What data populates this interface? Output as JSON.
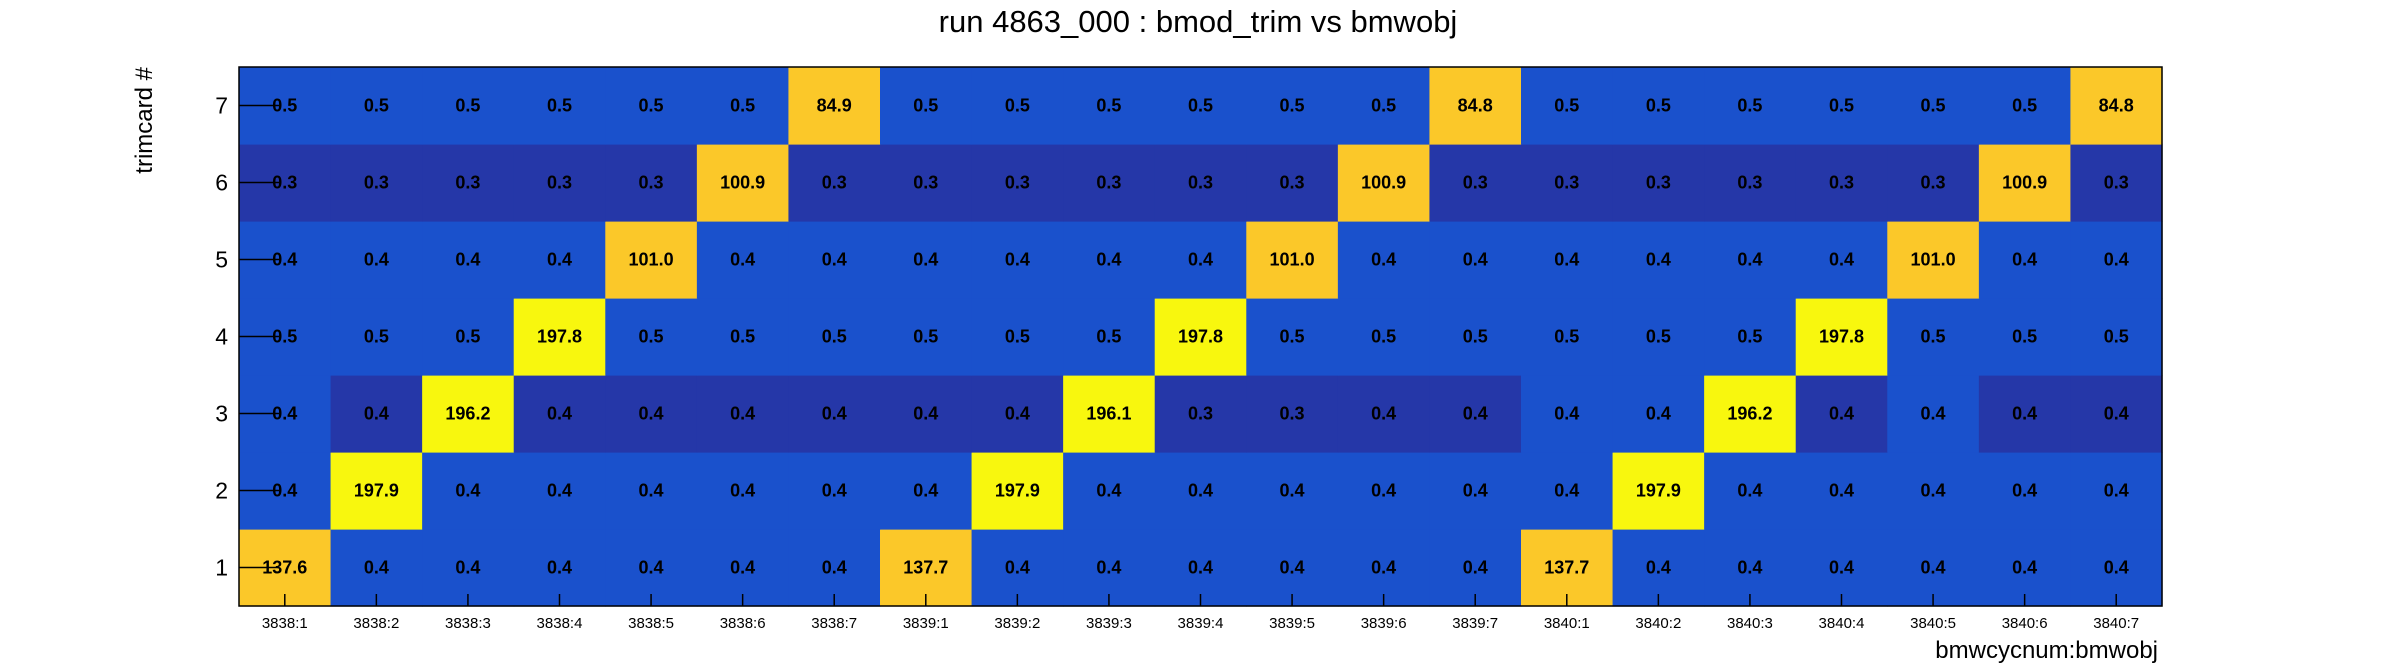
{
  "chart_data": {
    "type": "heatmap",
    "title": "run 4863_000 : bmod_trim vs bmwobj",
    "xlabel": "bmwcycnum:bmwobj",
    "ylabel": "trimcard #",
    "x_categories": [
      "3838:1",
      "3838:2",
      "3838:3",
      "3838:4",
      "3838:5",
      "3838:6",
      "3838:7",
      "3839:1",
      "3839:2",
      "3839:3",
      "3839:4",
      "3839:5",
      "3839:6",
      "3839:7",
      "3840:1",
      "3840:2",
      "3840:3",
      "3840:4",
      "3840:5",
      "3840:6",
      "3840:7"
    ],
    "y_categories": [
      "1",
      "2",
      "3",
      "4",
      "5",
      "6",
      "7"
    ],
    "values": [
      [
        "137.6",
        "0.4",
        "0.4",
        "0.4",
        "0.4",
        "0.4",
        "0.4",
        "137.7",
        "0.4",
        "0.4",
        "0.4",
        "0.4",
        "0.4",
        "0.4",
        "137.7",
        "0.4",
        "0.4",
        "0.4",
        "0.4",
        "0.4",
        "0.4"
      ],
      [
        "0.4",
        "197.9",
        "0.4",
        "0.4",
        "0.4",
        "0.4",
        "0.4",
        "0.4",
        "197.9",
        "0.4",
        "0.4",
        "0.4",
        "0.4",
        "0.4",
        "0.4",
        "197.9",
        "0.4",
        "0.4",
        "0.4",
        "0.4",
        "0.4"
      ],
      [
        "0.4",
        "0.4",
        "196.2",
        "0.4",
        "0.4",
        "0.4",
        "0.4",
        "0.4",
        "0.4",
        "196.1",
        "0.3",
        "0.3",
        "0.4",
        "0.4",
        "0.4",
        "0.4",
        "196.2",
        "0.4",
        "0.4",
        "0.4",
        "0.4"
      ],
      [
        "0.5",
        "0.5",
        "0.5",
        "197.8",
        "0.5",
        "0.5",
        "0.5",
        "0.5",
        "0.5",
        "0.5",
        "197.8",
        "0.5",
        "0.5",
        "0.5",
        "0.5",
        "0.5",
        "0.5",
        "197.8",
        "0.5",
        "0.5",
        "0.5"
      ],
      [
        "0.4",
        "0.4",
        "0.4",
        "0.4",
        "101.0",
        "0.4",
        "0.4",
        "0.4",
        "0.4",
        "0.4",
        "0.4",
        "101.0",
        "0.4",
        "0.4",
        "0.4",
        "0.4",
        "0.4",
        "0.4",
        "101.0",
        "0.4",
        "0.4"
      ],
      [
        "0.3",
        "0.3",
        "0.3",
        "0.3",
        "0.3",
        "100.9",
        "0.3",
        "0.3",
        "0.3",
        "0.3",
        "0.3",
        "0.3",
        "100.9",
        "0.3",
        "0.3",
        "0.3",
        "0.3",
        "0.3",
        "0.3",
        "100.9",
        "0.3"
      ],
      [
        "0.5",
        "0.5",
        "0.5",
        "0.5",
        "0.5",
        "0.5",
        "84.9",
        "0.5",
        "0.5",
        "0.5",
        "0.5",
        "0.5",
        "0.5",
        "84.8",
        "0.5",
        "0.5",
        "0.5",
        "0.5",
        "0.5",
        "0.5",
        "84.8"
      ]
    ],
    "dark_cells": [
      [
        2,
        1
      ],
      [
        2,
        3
      ],
      [
        2,
        4
      ],
      [
        2,
        5
      ],
      [
        2,
        6
      ],
      [
        2,
        7
      ],
      [
        2,
        8
      ],
      [
        2,
        10
      ],
      [
        2,
        11
      ],
      [
        2,
        12
      ],
      [
        2,
        13
      ],
      [
        2,
        17
      ],
      [
        2,
        19
      ],
      [
        2,
        20
      ],
      [
        5,
        0
      ],
      [
        5,
        1
      ],
      [
        5,
        2
      ],
      [
        5,
        3
      ],
      [
        5,
        4
      ],
      [
        5,
        6
      ],
      [
        5,
        7
      ],
      [
        5,
        8
      ],
      [
        5,
        9
      ],
      [
        5,
        10
      ],
      [
        5,
        11
      ],
      [
        5,
        13
      ],
      [
        5,
        14
      ],
      [
        5,
        15
      ],
      [
        5,
        16
      ],
      [
        5,
        17
      ],
      [
        5,
        18
      ],
      [
        5,
        20
      ]
    ],
    "colors": {
      "blue": "#1a51cc",
      "dark_blue": "#2537a8",
      "yellow": "#f8f70e",
      "orange": "#fbc829",
      "tick": "#000000"
    },
    "grid": false
  }
}
